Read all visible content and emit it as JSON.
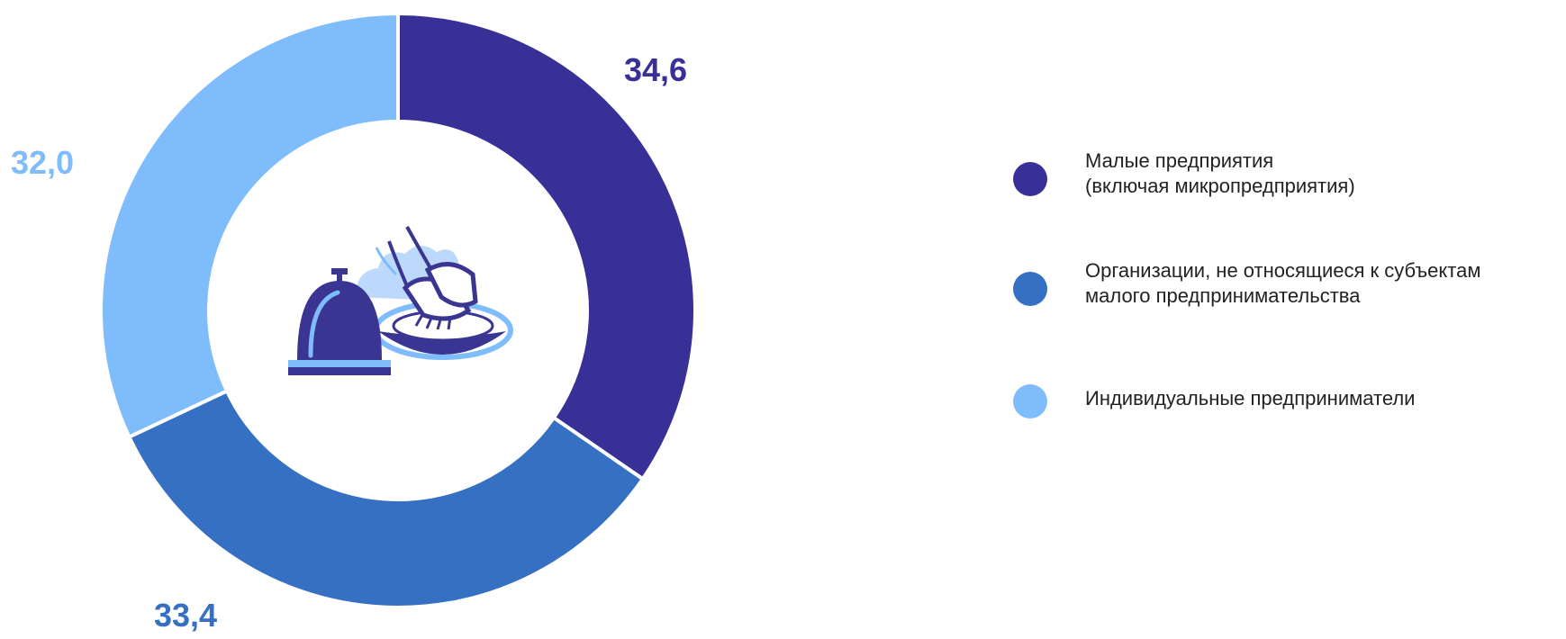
{
  "chart_data": {
    "type": "pie",
    "categories": [
      "Малые предприятия\n(включая микропредприятия)",
      "Организации, не относящиеся к субъектам\nмалого предпринимательства",
      "Индивидуальные предприниматели"
    ],
    "values": [
      34.6,
      33.4,
      32.0
    ],
    "value_labels": [
      "34,6",
      "33,4",
      "32,0"
    ],
    "colors": [
      "#383096",
      "#3670c2",
      "#7fbcfb"
    ],
    "donut": true,
    "legend_position": "right"
  },
  "legend": {
    "items": [
      {
        "label": "Малые предприятия\n(включая микропредприятия)",
        "color": "#383096"
      },
      {
        "label": "Организации, не относящиеся к субъектам\nмалого предпринимательства",
        "color": "#3670c2"
      },
      {
        "label": "Индивидуальные предприниматели",
        "color": "#7fbcfb"
      }
    ]
  },
  "center_icon": "hotel-bell-and-shrimp-dish-icon"
}
